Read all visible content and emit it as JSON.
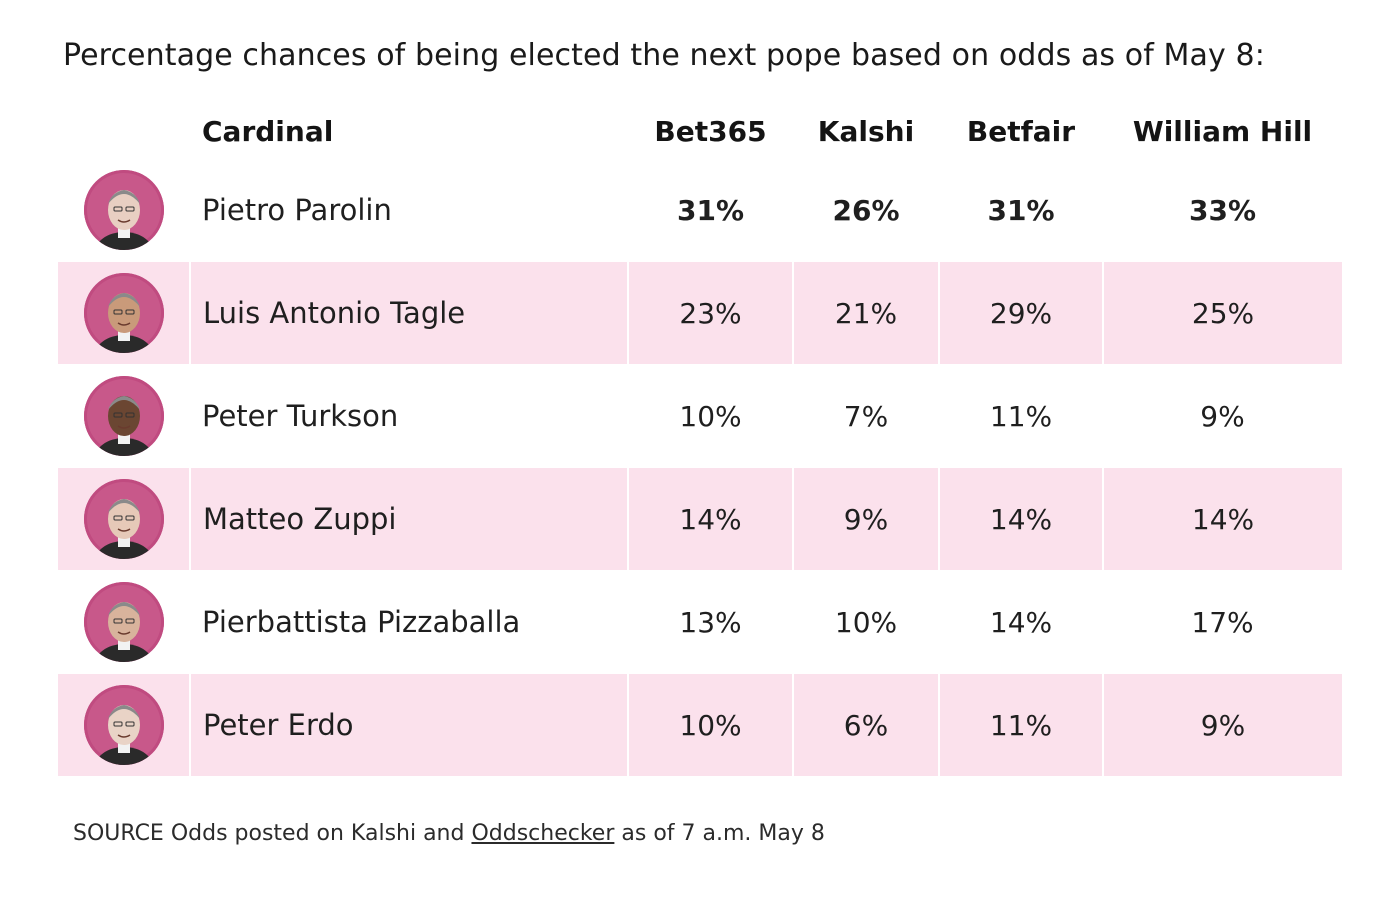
{
  "chart_data": {
    "type": "table",
    "title": "Percentage chances of being elected the next pope based on odds as of May 8:",
    "columns": [
      "Cardinal",
      "Bet365",
      "Kalshi",
      "Betfair",
      "William Hill"
    ],
    "rows": [
      {
        "name": "Pietro Parolin",
        "values": [
          "31%",
          "26%",
          "31%",
          "33%"
        ],
        "bold": true
      },
      {
        "name": "Luis Antonio Tagle",
        "values": [
          "23%",
          "21%",
          "29%",
          "25%"
        ],
        "bold": false
      },
      {
        "name": "Peter Turkson",
        "values": [
          "10%",
          "7%",
          "11%",
          "9%"
        ],
        "bold": false
      },
      {
        "name": "Matteo Zuppi",
        "values": [
          "14%",
          "9%",
          "14%",
          "14%"
        ],
        "bold": false
      },
      {
        "name": "Pierbattista Pizzaballa",
        "values": [
          "13%",
          "10%",
          "14%",
          "17%"
        ],
        "bold": false
      },
      {
        "name": "Peter Erdo",
        "values": [
          "10%",
          "6%",
          "11%",
          "9%"
        ],
        "bold": false
      }
    ],
    "source": {
      "prefix": "SOURCE Odds posted on Kalshi and ",
      "link": "Oddschecker",
      "suffix": " as of 7 a.m. May 8"
    },
    "colors": {
      "row_shade": "#fbe1ec",
      "avatar_ring": "#c8588a"
    }
  }
}
